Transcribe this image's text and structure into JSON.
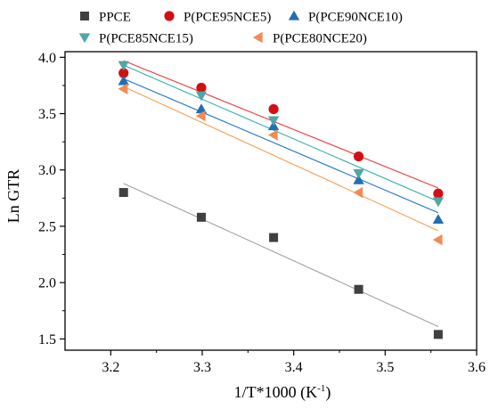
{
  "chart_data": {
    "type": "scatter",
    "title": "",
    "xlabel": "1/T*1000 (K",
    "xlabel_sup": "-1",
    "xlabel_end": ")",
    "ylabel": "Ln GTR",
    "xlim": [
      3.15,
      3.6
    ],
    "ylim": [
      1.4,
      4.05
    ],
    "x_ticks": [
      3.2,
      3.3,
      3.4,
      3.5,
      3.6
    ],
    "x_tick_labels": [
      "3.2",
      "3.3",
      "3.4",
      "3.5",
      "3.6"
    ],
    "y_ticks": [
      1.5,
      2.0,
      2.5,
      3.0,
      3.5,
      4.0
    ],
    "y_tick_labels": [
      "1.5",
      "2.0",
      "2.5",
      "3.0",
      "3.5",
      "4.0"
    ],
    "grid": false,
    "legend_position": "top",
    "x": [
      3.214,
      3.299,
      3.378,
      3.471,
      3.558
    ],
    "series": [
      {
        "name": "PPCE",
        "marker": "square",
        "color": "#404040",
        "fit_color": "#a0a0a0",
        "values": [
          2.8,
          2.58,
          2.4,
          1.94,
          1.54
        ],
        "fit": [
          2.88,
          1.61
        ]
      },
      {
        "name": "P(PCE95NCE5)",
        "marker": "circle",
        "color": "#d21014",
        "fit_color": "#ee3b3b",
        "values": [
          3.86,
          3.73,
          3.54,
          3.12,
          2.79
        ],
        "fit": [
          3.97,
          2.84
        ]
      },
      {
        "name": "P(PCE90NCE10)",
        "marker": "triangle-up",
        "color": "#1f6fb2",
        "fit_color": "#1a73c9",
        "values": [
          3.79,
          3.54,
          3.39,
          2.91,
          2.56
        ],
        "fit": [
          3.81,
          2.62
        ]
      },
      {
        "name": "P(PCE85NCE15)",
        "marker": "triangle-down",
        "color": "#4fa8a4",
        "fit_color": "#2fb0ad",
        "values": [
          3.93,
          3.66,
          3.44,
          2.97,
          2.72
        ],
        "fit": [
          3.93,
          2.72
        ]
      },
      {
        "name": "P(PCE80NCE20)",
        "marker": "triangle-left",
        "color": "#f28b57",
        "fit_color": "#f5a050",
        "values": [
          3.72,
          3.48,
          3.31,
          2.8,
          2.38
        ],
        "fit": [
          3.74,
          2.46
        ]
      }
    ]
  }
}
